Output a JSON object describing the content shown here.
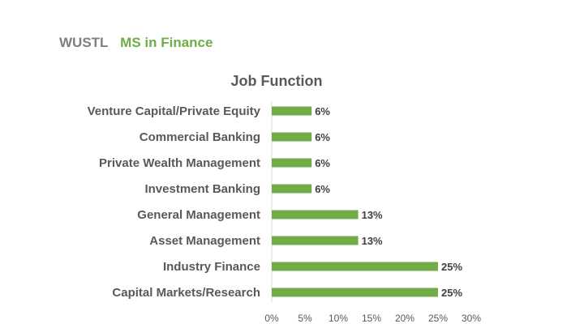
{
  "header": {
    "school": "WUSTL",
    "program": "MS in Finance"
  },
  "colors": {
    "accent": "#70ad47",
    "header_gray": "#7f7f7f",
    "text": "#595959",
    "axis": "#d9d9d9"
  },
  "chart_data": {
    "type": "bar",
    "orientation": "horizontal",
    "title": "Job Function",
    "categories": [
      "Venture Capital/Private Equity",
      "Commercial Banking",
      "Private Wealth Management",
      "Investment Banking",
      "General Management",
      "Asset Management",
      "Industry Finance",
      "Capital Markets/Research"
    ],
    "values": [
      6,
      6,
      6,
      6,
      13,
      13,
      25,
      25
    ],
    "value_labels": [
      "6%",
      "6%",
      "6%",
      "6%",
      "13%",
      "13%",
      "25%",
      "25%"
    ],
    "xlim": [
      0,
      30
    ],
    "x_ticks": [
      0,
      5,
      10,
      15,
      20,
      25,
      30
    ],
    "x_tick_labels": [
      "0%",
      "5%",
      "10%",
      "15%",
      "20%",
      "25%",
      "30%"
    ],
    "grid": false,
    "legend": "none"
  }
}
